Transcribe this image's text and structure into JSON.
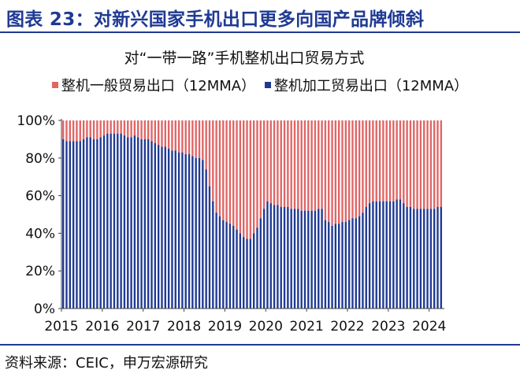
{
  "figure_title": "图表 23：对新兴国家手机出口更多向国产品牌倾斜",
  "source_note": "资料来源：CEIC，申万宏源研究",
  "colors": {
    "blue": "#1f3a93",
    "red": "#e06666"
  },
  "chart_data": {
    "type": "bar",
    "stacked": true,
    "percent": true,
    "title": "对“一带一路”手机整机出口贸易方式",
    "xlabel": "",
    "ylabel": "",
    "ylim": [
      0,
      100
    ],
    "yticks": [
      "0%",
      "20%",
      "40%",
      "60%",
      "80%",
      "100%"
    ],
    "x_range": [
      "2015-01",
      "2024-06"
    ],
    "xticks": [
      "2015",
      "2016",
      "2017",
      "2018",
      "2019",
      "2020",
      "2021",
      "2022",
      "2023",
      "2024"
    ],
    "series": [
      {
        "name": "整机一般贸易出口（12MMA）",
        "color": "#e06666",
        "note": "complement of the processing-trade share (stacked to 100%)"
      },
      {
        "name": "整机加工贸易出口（12MMA）",
        "color": "#1f3a93",
        "values": [
          90,
          89,
          89,
          89,
          89,
          89,
          90,
          91,
          91,
          90,
          90,
          91,
          92,
          93,
          93,
          93,
          93,
          93,
          92,
          91,
          91,
          92,
          91,
          90,
          90,
          90,
          89,
          88,
          87,
          86,
          86,
          85,
          84,
          84,
          83,
          83,
          82,
          82,
          81,
          80,
          80,
          79,
          74,
          65,
          57,
          51,
          49,
          47,
          46,
          45,
          44,
          42,
          40,
          38,
          37,
          37,
          40,
          43,
          48,
          53,
          57,
          56,
          55,
          55,
          54,
          54,
          54,
          53,
          53,
          53,
          52,
          52,
          52,
          52,
          52,
          53,
          53,
          47,
          46,
          44,
          45,
          45,
          46,
          46,
          47,
          48,
          48,
          49,
          51,
          54,
          56,
          57,
          57,
          57,
          57,
          57,
          57,
          57,
          58,
          58,
          56,
          54,
          54,
          53,
          53,
          53,
          53,
          53,
          53,
          53,
          54,
          54
        ]
      }
    ]
  }
}
